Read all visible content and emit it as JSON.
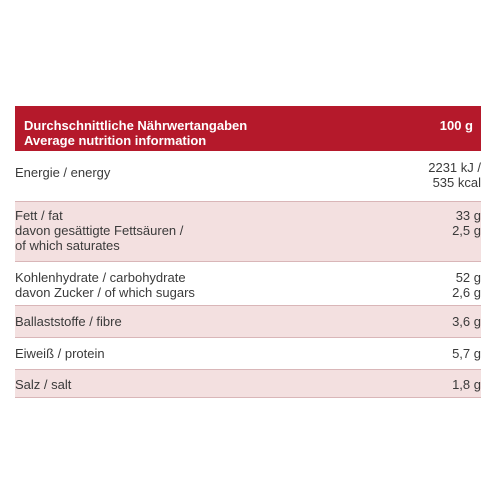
{
  "header": {
    "title_de": "Durchschnittliche Nährwertangaben",
    "title_en": "Average nutrition information",
    "per": "100 g"
  },
  "rows": [
    {
      "lines": [
        "Energie / energy"
      ],
      "values": [
        "2231 kJ /",
        "535 kcal"
      ]
    },
    {
      "lines": [
        "Fett / fat",
        "davon gesättigte Fettsäuren /",
        "of which saturates"
      ],
      "values": [
        "33 g",
        "2,5 g"
      ]
    },
    {
      "lines": [
        "Kohlenhydrate / carbohydrate",
        "davon Zucker / of which sugars"
      ],
      "values": [
        "52 g",
        "2,6 g"
      ]
    },
    {
      "lines": [
        "Ballaststoffe / fibre"
      ],
      "values": [
        "3,6 g"
      ]
    },
    {
      "lines": [
        "Eiweiß / protein"
      ],
      "values": [
        "5,7 g"
      ]
    },
    {
      "lines": [
        "Salz / salt"
      ],
      "values": [
        "1,8 g"
      ]
    }
  ],
  "colors": {
    "header_bg": "#b5192b",
    "row_pink": "#f3e0e0",
    "row_white": "#ffffff"
  }
}
